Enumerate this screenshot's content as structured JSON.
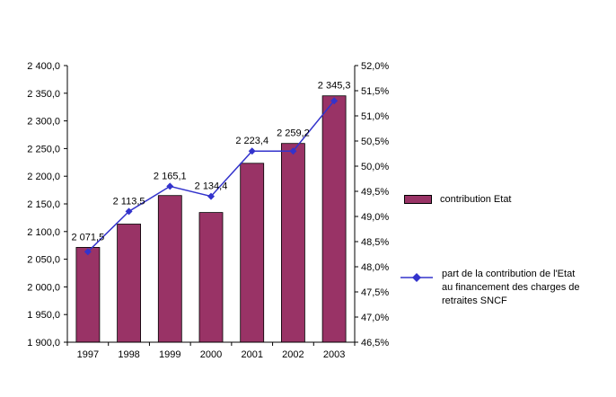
{
  "chart_data": {
    "type": "bar+line",
    "categories": [
      "1997",
      "1998",
      "1999",
      "2000",
      "2001",
      "2002",
      "2003"
    ],
    "bar_series": {
      "name": "contribution Etat",
      "axis": "left",
      "values": [
        2071.5,
        2113.5,
        2165.1,
        2134.4,
        2223.4,
        2259.2,
        2345.3
      ],
      "data_labels": [
        "2 071,5",
        "2 113,5",
        "2 165,1",
        "2 134,4",
        "2 223,4",
        "2 259,2",
        "2 345,3"
      ],
      "color": "#993366",
      "border_color": "#000000"
    },
    "line_series": {
      "name": "part de la contribution de l'Etat au financement des charges de retraites SNCF",
      "axis": "right",
      "values": [
        48.3,
        49.1,
        49.6,
        49.4,
        50.3,
        50.3,
        51.3
      ],
      "color": "#3333CC",
      "marker": "diamond"
    },
    "left_axis": {
      "min": 1900,
      "max": 2400,
      "step": 50,
      "labels": [
        "2 400,0",
        "2 350,0",
        "2 300,0",
        "2 250,0",
        "2 200,0",
        "2 150,0",
        "2 100,0",
        "2 050,0",
        "2 000,0",
        "1 950,0",
        "1 900,0"
      ]
    },
    "right_axis": {
      "min": 46.5,
      "max": 52.0,
      "step": 0.5,
      "labels": [
        "52,0%",
        "51,5%",
        "51,0%",
        "50,5%",
        "50,0%",
        "49,5%",
        "49,0%",
        "48,5%",
        "48,0%",
        "47,5%",
        "47,0%",
        "46,5%"
      ]
    },
    "grid": false,
    "legend_position": "right",
    "title": ""
  },
  "legend": {
    "bar_label": "contribution Etat",
    "line_label_lines": [
      "part de la contribution de l'Etat",
      "au financement  des charges de",
      "retraites SNCF"
    ]
  }
}
